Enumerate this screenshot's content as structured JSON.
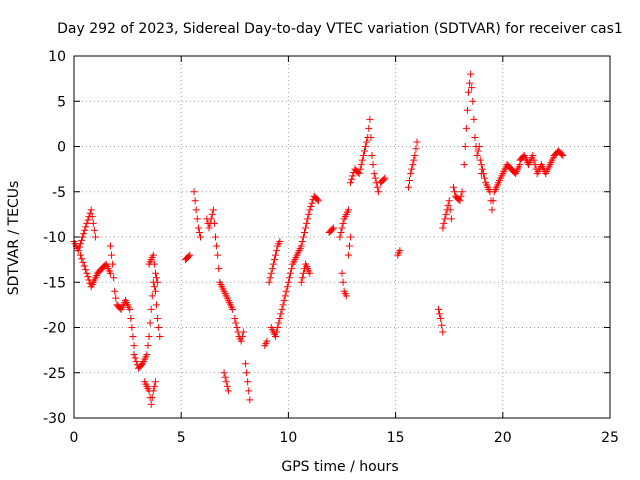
{
  "chart_data": {
    "type": "scatter",
    "title": "Day 292 of 2023, Sidereal Day-to-day VTEC variation (SDTVAR) for receiver cas1",
    "xlabel": "GPS time / hours",
    "ylabel": "SDTVAR / TECUs",
    "xlim": [
      0,
      25
    ],
    "ylim": [
      -30,
      10
    ],
    "xticks": [
      0,
      5,
      10,
      15,
      20,
      25
    ],
    "yticks": [
      -30,
      -25,
      -20,
      -15,
      -10,
      -5,
      0,
      5,
      10
    ],
    "grid": true,
    "marker": "+",
    "colors": {
      "points": "#ff0000",
      "grid": "#a0a0a0",
      "axes": "#000000"
    },
    "series": [
      {
        "name": "SDTVAR",
        "segments": [
          [
            [
              0.0,
              -10.5
            ],
            [
              0.2,
              -11.5
            ],
            [
              0.4,
              -10
            ],
            [
              0.6,
              -8.5
            ],
            [
              0.8,
              -7
            ],
            [
              0.9,
              -8.5
            ],
            [
              1.0,
              -10
            ]
          ],
          [
            [
              0.3,
              -12
            ],
            [
              0.6,
              -14
            ],
            [
              0.8,
              -15.5
            ],
            [
              1.1,
              -14
            ],
            [
              1.3,
              -13.5
            ],
            [
              1.5,
              -13
            ],
            [
              1.7,
              -14
            ]
          ],
          [
            [
              1.7,
              -11
            ],
            [
              1.8,
              -13
            ],
            [
              1.9,
              -16
            ],
            [
              2.0,
              -17.5
            ],
            [
              2.2,
              -18
            ],
            [
              2.4,
              -17
            ],
            [
              2.6,
              -18
            ],
            [
              2.7,
              -20
            ],
            [
              2.8,
              -22
            ]
          ],
          [
            [
              2.8,
              -23
            ],
            [
              3.0,
              -24.5
            ],
            [
              3.2,
              -24
            ],
            [
              3.4,
              -23
            ],
            [
              3.5,
              -21
            ],
            [
              3.6,
              -18
            ],
            [
              3.7,
              -15
            ],
            [
              3.8,
              -16
            ],
            [
              3.9,
              -19
            ],
            [
              4.0,
              -21
            ]
          ],
          [
            [
              3.3,
              -26
            ],
            [
              3.5,
              -27
            ],
            [
              3.6,
              -28.5
            ],
            [
              3.7,
              -27
            ],
            [
              3.8,
              -26
            ]
          ],
          [
            [
              3.5,
              -13
            ],
            [
              3.7,
              -12
            ],
            [
              3.8,
              -14
            ],
            [
              3.9,
              -15
            ]
          ],
          [
            [
              5.2,
              -12.5
            ],
            [
              5.4,
              -12
            ]
          ],
          [
            [
              5.6,
              -5
            ],
            [
              5.7,
              -7
            ],
            [
              5.8,
              -9
            ],
            [
              5.9,
              -10
            ]
          ],
          [
            [
              6.2,
              -8
            ],
            [
              6.3,
              -9
            ],
            [
              6.5,
              -7
            ],
            [
              6.6,
              -10
            ],
            [
              6.7,
              -12
            ],
            [
              6.8,
              -15
            ],
            [
              7.0,
              -16
            ],
            [
              7.2,
              -17
            ],
            [
              7.4,
              -18
            ]
          ],
          [
            [
              7.5,
              -19
            ],
            [
              7.6,
              -20
            ],
            [
              7.7,
              -21
            ],
            [
              7.8,
              -21.5
            ],
            [
              7.9,
              -20.5
            ]
          ],
          [
            [
              7.0,
              -25
            ],
            [
              7.1,
              -26
            ],
            [
              7.2,
              -27
            ]
          ],
          [
            [
              8.0,
              -24
            ],
            [
              8.1,
              -26
            ],
            [
              8.2,
              -28
            ]
          ],
          [
            [
              8.9,
              -22
            ],
            [
              9.0,
              -21.5
            ]
          ],
          [
            [
              9.1,
              -15
            ],
            [
              9.3,
              -13
            ],
            [
              9.5,
              -11
            ],
            [
              9.6,
              -10.5
            ]
          ],
          [
            [
              9.2,
              -20
            ],
            [
              9.4,
              -21
            ],
            [
              9.6,
              -19
            ],
            [
              9.8,
              -17
            ],
            [
              10.0,
              -15
            ],
            [
              10.2,
              -13
            ],
            [
              10.4,
              -12
            ],
            [
              10.6,
              -11
            ],
            [
              10.8,
              -9
            ],
            [
              11.0,
              -7
            ],
            [
              11.2,
              -5.5
            ],
            [
              11.4,
              -6
            ]
          ],
          [
            [
              10.6,
              -15
            ],
            [
              10.8,
              -13
            ],
            [
              11.0,
              -14
            ]
          ],
          [
            [
              11.9,
              -9.5
            ],
            [
              12.1,
              -9
            ]
          ],
          [
            [
              12.4,
              -10
            ],
            [
              12.6,
              -8
            ],
            [
              12.8,
              -7
            ]
          ],
          [
            [
              12.5,
              -14
            ],
            [
              12.6,
              -16
            ],
            [
              12.7,
              -16.5
            ]
          ],
          [
            [
              12.9,
              -4
            ],
            [
              13.1,
              -2.5
            ],
            [
              13.3,
              -3
            ],
            [
              13.5,
              -1
            ],
            [
              13.7,
              1
            ],
            [
              13.8,
              3
            ],
            [
              13.9,
              -1
            ],
            [
              14.0,
              -3
            ],
            [
              14.2,
              -5
            ]
          ],
          [
            [
              12.8,
              -12
            ],
            [
              12.9,
              -10
            ]
          ],
          [
            [
              14.3,
              -4
            ],
            [
              14.5,
              -3.5
            ]
          ],
          [
            [
              15.1,
              -12
            ],
            [
              15.2,
              -11.5
            ]
          ],
          [
            [
              15.6,
              -4.5
            ],
            [
              15.7,
              -3
            ],
            [
              15.8,
              -2
            ],
            [
              15.9,
              -1
            ],
            [
              16.0,
              0.5
            ]
          ],
          [
            [
              17.0,
              -18
            ],
            [
              17.1,
              -19
            ],
            [
              17.2,
              -20.5
            ]
          ],
          [
            [
              17.2,
              -9
            ],
            [
              17.3,
              -8
            ],
            [
              17.4,
              -7
            ],
            [
              17.5,
              -6
            ],
            [
              17.6,
              -8
            ]
          ],
          [
            [
              17.7,
              -4.5
            ],
            [
              17.8,
              -5.5
            ],
            [
              18.0,
              -6
            ],
            [
              18.1,
              -5
            ]
          ],
          [
            [
              18.2,
              -2
            ],
            [
              18.3,
              2
            ],
            [
              18.4,
              6
            ],
            [
              18.5,
              8
            ],
            [
              18.6,
              5
            ],
            [
              18.7,
              1
            ],
            [
              18.8,
              -1
            ],
            [
              18.9,
              0
            ],
            [
              19.0,
              -3
            ]
          ],
          [
            [
              19.0,
              -2
            ],
            [
              19.2,
              -4
            ],
            [
              19.4,
              -5
            ],
            [
              19.5,
              -7
            ],
            [
              19.6,
              -5
            ],
            [
              19.8,
              -4
            ],
            [
              20.0,
              -3
            ],
            [
              20.2,
              -2
            ],
            [
              20.4,
              -2.5
            ],
            [
              20.6,
              -3
            ],
            [
              20.8,
              -2
            ]
          ],
          [
            [
              20.8,
              -1.5
            ],
            [
              21.0,
              -1
            ],
            [
              21.2,
              -2
            ],
            [
              21.4,
              -1
            ],
            [
              21.6,
              -3
            ],
            [
              21.8,
              -2
            ],
            [
              22.0,
              -3
            ],
            [
              22.2,
              -2
            ],
            [
              22.4,
              -1
            ],
            [
              22.6,
              -0.5
            ],
            [
              22.8,
              -1
            ]
          ]
        ]
      }
    ]
  }
}
